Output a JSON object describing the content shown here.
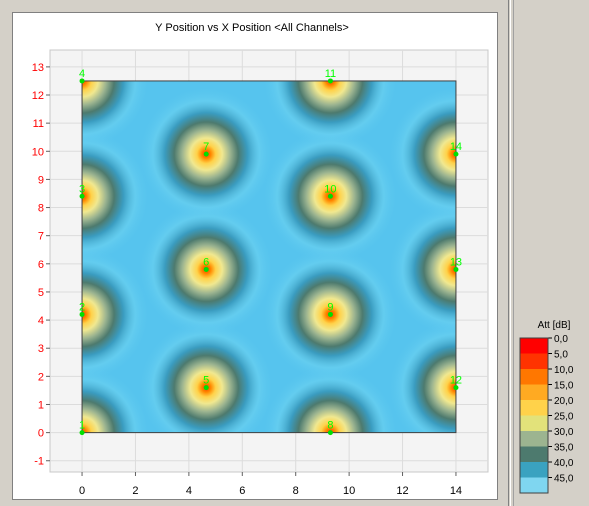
{
  "chart_data": {
    "type": "heatmap",
    "title": "Y Position vs X Position <All Channels>",
    "xlim": [
      -1.2,
      15.2
    ],
    "ylim": [
      -1.4,
      13.6
    ],
    "data_extent": {
      "x": [
        0,
        14
      ],
      "y": [
        0,
        12.5
      ]
    },
    "x_ticks": [
      0,
      2,
      4,
      6,
      8,
      10,
      12,
      14
    ],
    "y_ticks": [
      -1,
      0,
      1,
      2,
      3,
      4,
      5,
      6,
      7,
      8,
      9,
      10,
      11,
      12,
      13
    ],
    "grid": true,
    "sources": [
      {
        "label": "1",
        "x": 0,
        "y": 0
      },
      {
        "label": "2",
        "x": 0,
        "y": 4.2
      },
      {
        "label": "3",
        "x": 0,
        "y": 8.4
      },
      {
        "label": "4",
        "x": 0,
        "y": 12.5
      },
      {
        "label": "5",
        "x": 4.65,
        "y": 1.6
      },
      {
        "label": "6",
        "x": 4.65,
        "y": 5.8
      },
      {
        "label": "7",
        "x": 4.65,
        "y": 9.9
      },
      {
        "label": "8",
        "x": 9.3,
        "y": 0
      },
      {
        "label": "9",
        "x": 9.3,
        "y": 4.2
      },
      {
        "label": "10",
        "x": 9.3,
        "y": 8.4
      },
      {
        "label": "11",
        "x": 9.3,
        "y": 12.5
      },
      {
        "label": "12",
        "x": 14,
        "y": 1.6
      },
      {
        "label": "13",
        "x": 14,
        "y": 5.8
      },
      {
        "label": "14",
        "x": 14,
        "y": 9.9
      }
    ],
    "legend": {
      "title": "Att [dB]",
      "placement": "bottom-right",
      "levels": [
        {
          "label": "0,0",
          "color": "#ff0000"
        },
        {
          "label": "5,0",
          "color": "#ff3300"
        },
        {
          "label": "10,0",
          "color": "#ff7700"
        },
        {
          "label": "15,0",
          "color": "#ffaa22"
        },
        {
          "label": "20,0",
          "color": "#ffd24a"
        },
        {
          "label": "25,0",
          "color": "#e2e27a"
        },
        {
          "label": "30,0",
          "color": "#9cb490"
        },
        {
          "label": "35,0",
          "color": "#4d7a6e"
        },
        {
          "label": "40,0",
          "color": "#3aa2c0"
        },
        {
          "label": "45,0",
          "color": "#7fd6f0"
        }
      ]
    }
  }
}
